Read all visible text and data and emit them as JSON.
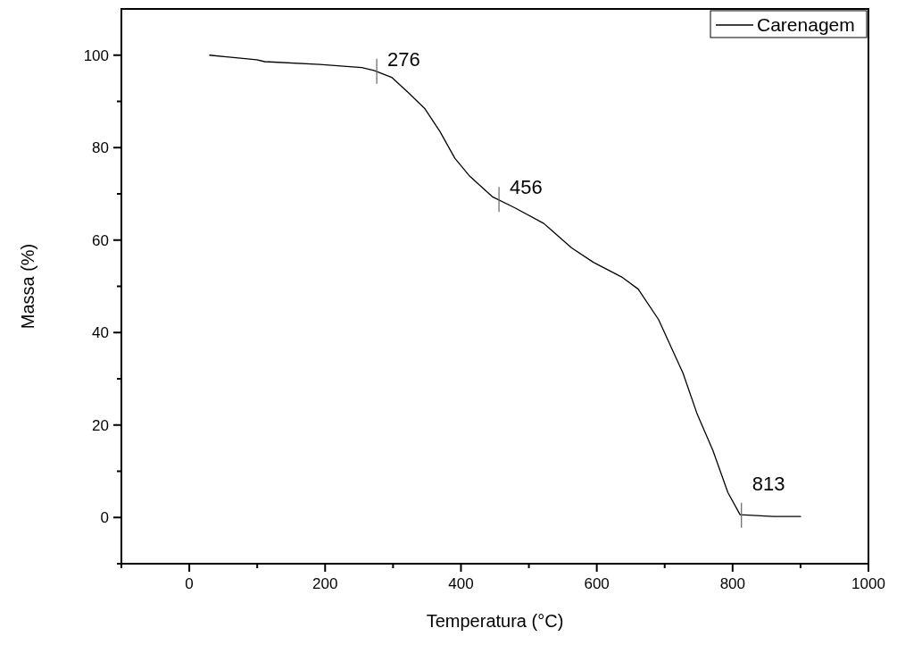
{
  "chart_data": {
    "type": "line",
    "xlabel": "Temperatura (°C)",
    "ylabel": "Massa (%)",
    "xlim": [
      -100,
      1000
    ],
    "ylim": [
      -10,
      110
    ],
    "xticks": [
      {
        "value": -100,
        "label": null
      },
      0,
      {
        "value": 100,
        "label": null
      },
      200,
      {
        "value": 300,
        "label": null
      },
      400,
      {
        "value": 500,
        "label": null
      },
      600,
      {
        "value": 700,
        "label": null
      },
      800,
      {
        "value": 900,
        "label": null
      },
      1000
    ],
    "yticks": [
      {
        "value": -10,
        "label": null
      },
      0,
      {
        "value": 10,
        "label": null
      },
      20,
      {
        "value": 30,
        "label": null
      },
      40,
      {
        "value": 50,
        "label": null
      },
      60,
      {
        "value": 70,
        "label": null
      },
      80,
      {
        "value": 90,
        "label": null
      },
      100
    ],
    "legend": "top right",
    "grid": false,
    "marker": "none",
    "line_style": "solid",
    "annotations": [
      {
        "text": "276",
        "x": 276,
        "y": 96.5
      },
      {
        "text": "456",
        "x": 456,
        "y": 68.8
      },
      {
        "text": "813",
        "x": 813,
        "y": 0.5
      }
    ],
    "series": [
      {
        "name": "Carenagem",
        "color": "#000000",
        "x": [
          30,
          99,
          111,
          192,
          254,
          272,
          298,
          324,
          347,
          369,
          391,
          413,
          446,
          479,
          522,
          563,
          595,
          638,
          661,
          691,
          727,
          748,
          771,
          793,
          811,
          860,
          900
        ],
        "values": [
          100,
          99,
          98.6,
          98,
          97.3,
          96.7,
          95.2,
          91.7,
          88.4,
          83.5,
          77.7,
          73.8,
          69.4,
          67,
          63.6,
          58.3,
          55.2,
          51.9,
          49.4,
          42.8,
          31.2,
          22.3,
          14.5,
          5.4,
          0.6,
          0.2,
          0.2
        ]
      }
    ]
  }
}
